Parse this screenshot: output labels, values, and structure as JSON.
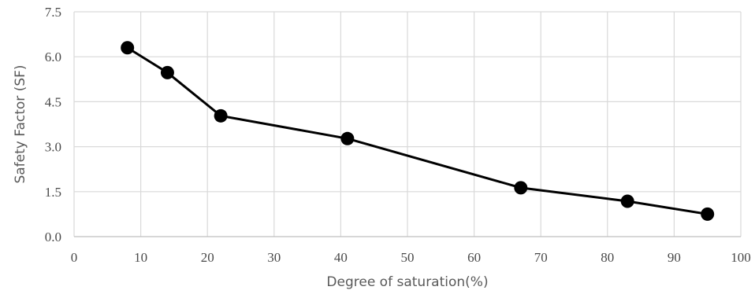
{
  "chart_data": {
    "type": "line",
    "title": "",
    "xlabel": "Degree of saturation(%)",
    "ylabel": "Safety Factor (SF)",
    "xlim": [
      0,
      100
    ],
    "ylim": [
      0,
      7.5
    ],
    "x_ticks": [
      "0",
      "10",
      "20",
      "30",
      "40",
      "50",
      "60",
      "70",
      "80",
      "90",
      "100"
    ],
    "y_ticks": [
      "0.0",
      "1.5",
      "3.0",
      "4.5",
      "6.0",
      "7.5"
    ],
    "grid": true,
    "legend": "none",
    "series": [
      {
        "x": [
          8,
          14,
          22,
          41,
          67,
          83,
          95
        ],
        "values": [
          6.3,
          5.47,
          4.03,
          3.27,
          1.63,
          1.18,
          0.75
        ],
        "color": "#000000",
        "marker": "circle"
      }
    ]
  }
}
